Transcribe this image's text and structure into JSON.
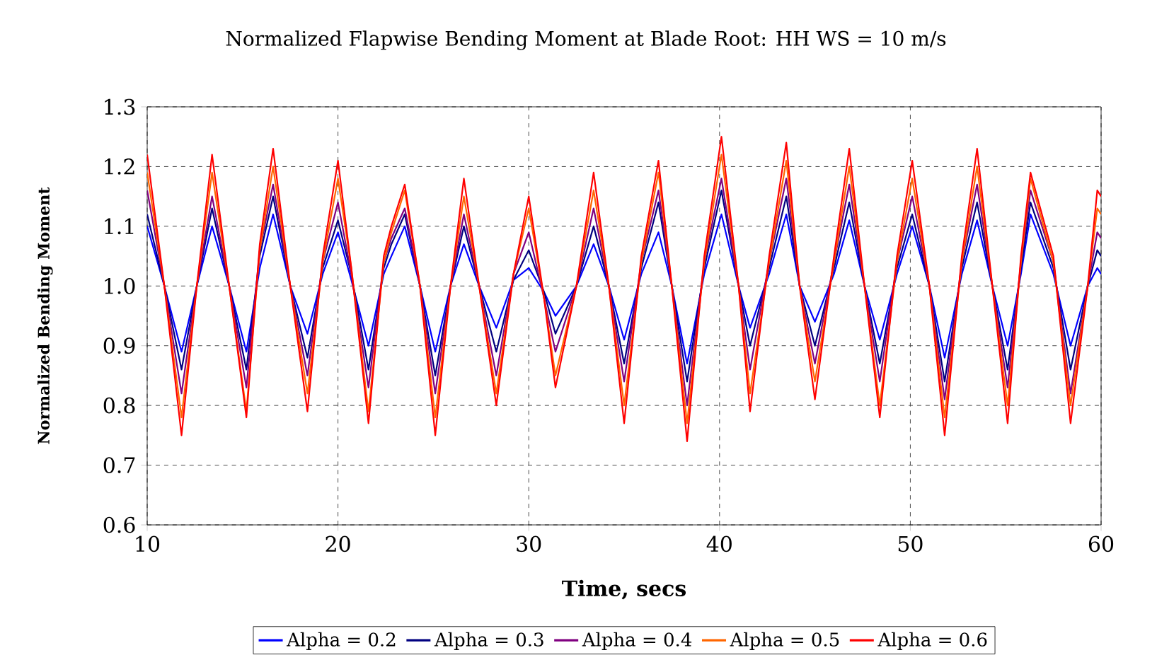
{
  "chart_data": {
    "type": "line",
    "title": "Normalized Flapwise Bending Moment at Blade Root: HH WS = 10 m/s",
    "xlabel": "Time, secs",
    "ylabel": "Normalized Bending Moment",
    "x": [
      10.0,
      10.9,
      11.8,
      12.6,
      13.4,
      14.3,
      15.2,
      15.9,
      16.6,
      17.5,
      18.4,
      19.2,
      20.0,
      20.7,
      21.6,
      22.4,
      22.8,
      23.5,
      24.3,
      25.1,
      25.9,
      26.6,
      27.4,
      28.3,
      29.2,
      30.0,
      30.8,
      31.4,
      32.5,
      33.4,
      34.2,
      35.0,
      35.9,
      36.8,
      37.5,
      38.3,
      39.2,
      40.1,
      41.0,
      41.6,
      42.6,
      43.5,
      44.2,
      45.0,
      46.0,
      46.8,
      47.6,
      48.4,
      49.3,
      50.1,
      51.0,
      51.8,
      52.7,
      53.5,
      54.3,
      55.1,
      55.8,
      56.3,
      57.5,
      58.4,
      59.3,
      59.8,
      60.0
    ],
    "series": [
      {
        "name": "Alpha = 0.2",
        "color": "#0000ff",
        "values": [
          1.1,
          1.0,
          0.89,
          1.0,
          1.1,
          1.0,
          0.89,
          1.03,
          1.12,
          1.0,
          0.92,
          1.02,
          1.09,
          1.01,
          0.9,
          1.02,
          1.05,
          1.1,
          1.0,
          0.89,
          1.0,
          1.07,
          1.0,
          0.93,
          1.01,
          1.03,
          0.99,
          0.95,
          1.0,
          1.07,
          1.0,
          0.91,
          1.02,
          1.09,
          1.0,
          0.87,
          1.02,
          1.12,
          1.0,
          0.93,
          1.02,
          1.12,
          1.0,
          0.94,
          1.02,
          1.11,
          1.0,
          0.91,
          1.02,
          1.1,
          1.0,
          0.88,
          1.02,
          1.11,
          1.0,
          0.9,
          1.02,
          1.12,
          1.02,
          0.9,
          1.0,
          1.03,
          1.02
        ]
      },
      {
        "name": "Alpha = 0.3",
        "color": "#000080",
        "values": [
          1.12,
          1.0,
          0.86,
          1.0,
          1.13,
          1.0,
          0.86,
          1.05,
          1.15,
          1.0,
          0.88,
          1.03,
          1.11,
          1.02,
          0.86,
          1.03,
          1.07,
          1.12,
          1.0,
          0.85,
          1.0,
          1.1,
          1.0,
          0.89,
          1.01,
          1.06,
          0.99,
          0.92,
          1.0,
          1.1,
          1.0,
          0.87,
          1.03,
          1.14,
          1.0,
          0.84,
          1.03,
          1.16,
          1.0,
          0.9,
          1.03,
          1.15,
          1.0,
          0.9,
          1.03,
          1.14,
          1.0,
          0.87,
          1.03,
          1.12,
          1.0,
          0.84,
          1.03,
          1.14,
          1.0,
          0.86,
          1.03,
          1.14,
          1.03,
          0.86,
          1.0,
          1.06,
          1.05
        ]
      },
      {
        "name": "Alpha = 0.4",
        "color": "#800080",
        "values": [
          1.16,
          1.0,
          0.82,
          1.0,
          1.15,
          1.0,
          0.83,
          1.06,
          1.17,
          1.0,
          0.85,
          1.04,
          1.14,
          1.02,
          0.83,
          1.04,
          1.08,
          1.13,
          1.0,
          0.82,
          1.0,
          1.12,
          1.0,
          0.85,
          1.02,
          1.09,
          0.98,
          0.89,
          1.0,
          1.13,
          1.0,
          0.84,
          1.04,
          1.16,
          1.0,
          0.8,
          1.04,
          1.18,
          1.0,
          0.86,
          1.04,
          1.18,
          1.0,
          0.87,
          1.04,
          1.17,
          1.0,
          0.84,
          1.04,
          1.15,
          1.0,
          0.81,
          1.04,
          1.17,
          1.0,
          0.83,
          1.04,
          1.16,
          1.04,
          0.82,
          1.0,
          1.09,
          1.08
        ]
      },
      {
        "name": "Alpha = 0.5",
        "color": "#ff6600",
        "values": [
          1.19,
          1.0,
          0.78,
          1.0,
          1.19,
          1.0,
          0.79,
          1.06,
          1.2,
          1.0,
          0.82,
          1.04,
          1.18,
          1.03,
          0.79,
          1.04,
          1.09,
          1.16,
          1.0,
          0.78,
          1.0,
          1.15,
          1.0,
          0.82,
          1.02,
          1.13,
          0.98,
          0.85,
          1.0,
          1.16,
          1.0,
          0.8,
          1.04,
          1.19,
          1.0,
          0.77,
          1.04,
          1.22,
          1.0,
          0.82,
          1.04,
          1.21,
          1.0,
          0.84,
          1.04,
          1.2,
          1.0,
          0.8,
          1.04,
          1.18,
          1.0,
          0.78,
          1.04,
          1.2,
          1.0,
          0.8,
          1.04,
          1.18,
          1.04,
          0.8,
          1.0,
          1.13,
          1.12
        ]
      },
      {
        "name": "Alpha = 0.6",
        "color": "#ff0000",
        "values": [
          1.22,
          1.0,
          0.75,
          1.0,
          1.22,
          1.0,
          0.78,
          1.07,
          1.23,
          1.0,
          0.79,
          1.05,
          1.21,
          1.03,
          0.77,
          1.05,
          1.1,
          1.17,
          1.0,
          0.75,
          1.0,
          1.18,
          1.0,
          0.8,
          1.02,
          1.15,
          0.98,
          0.83,
          1.0,
          1.19,
          1.0,
          0.77,
          1.05,
          1.21,
          1.0,
          0.74,
          1.05,
          1.25,
          1.0,
          0.79,
          1.05,
          1.24,
          1.0,
          0.81,
          1.05,
          1.23,
          1.0,
          0.78,
          1.05,
          1.21,
          1.0,
          0.75,
          1.05,
          1.23,
          1.0,
          0.77,
          1.05,
          1.19,
          1.05,
          0.77,
          1.0,
          1.16,
          1.15
        ]
      }
    ],
    "xlim": [
      10,
      60
    ],
    "ylim": [
      0.6,
      1.3
    ],
    "xticks": [
      10,
      20,
      30,
      40,
      50,
      60
    ],
    "yticks": [
      {
        "value": 0.6,
        "label": "0.6"
      },
      {
        "value": 0.7,
        "label": "0.7"
      },
      {
        "value": 0.8,
        "label": "0.8"
      },
      {
        "value": 0.9,
        "label": "0.9"
      },
      {
        "value": 1.0,
        "label": "1.0"
      },
      {
        "value": 1.1,
        "label": "1.1"
      },
      {
        "value": 1.2,
        "label": "1.2"
      },
      {
        "value": 1.3,
        "label": "1.3"
      }
    ],
    "grid": true,
    "legend": "bottom",
    "marker": "none",
    "line_style": "solid"
  }
}
